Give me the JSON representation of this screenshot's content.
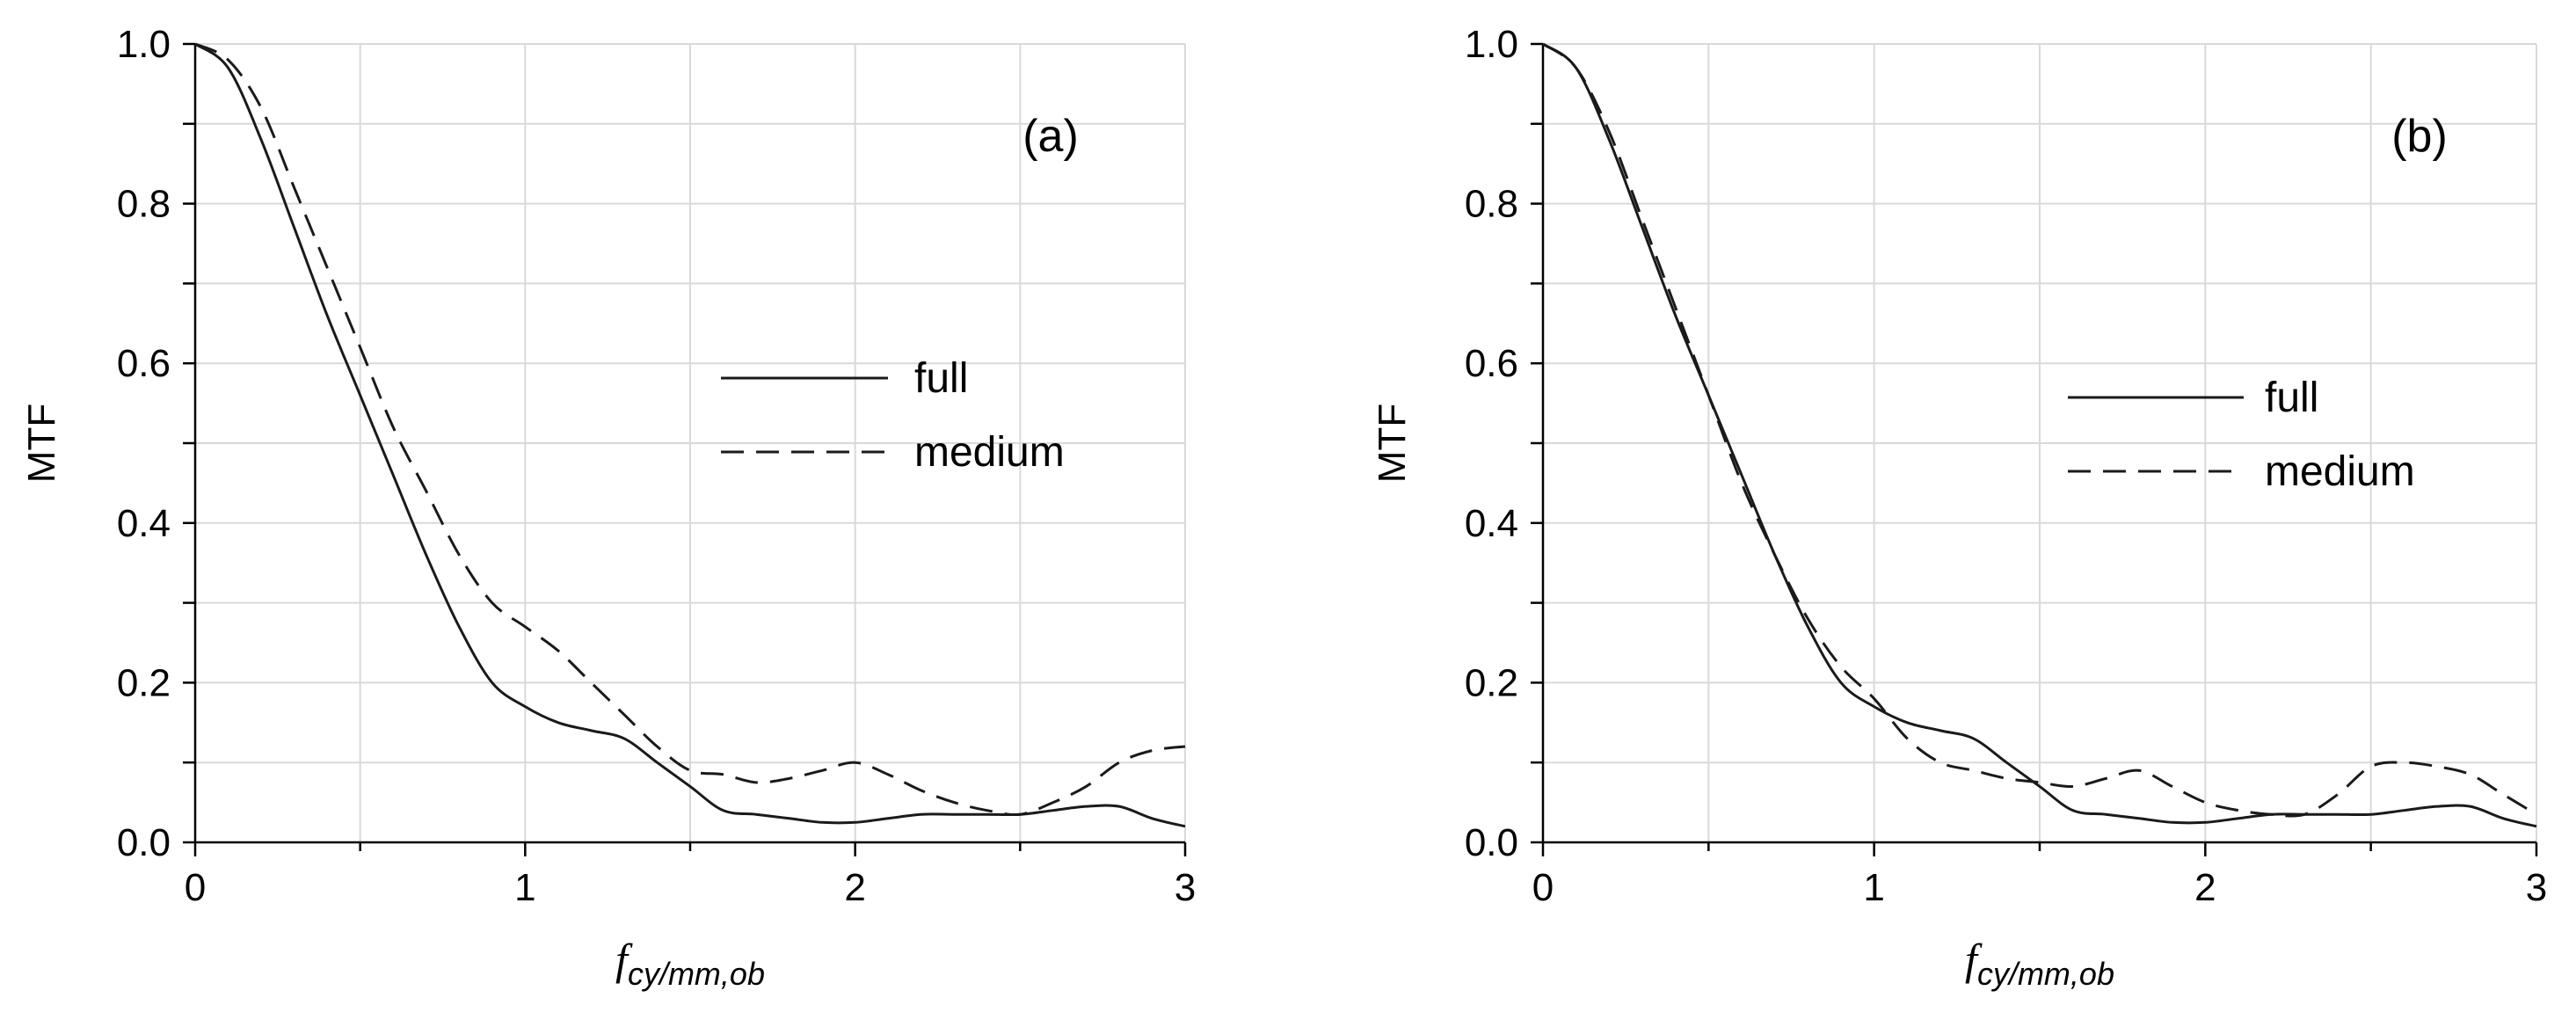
{
  "chart_data": [
    {
      "type": "line",
      "panel_label": "(a)",
      "xlabel": "f",
      "xlabel_subscript": "cy/mm,ob",
      "ylabel": "MTF",
      "xlim": [
        0,
        3
      ],
      "ylim": [
        0,
        1
      ],
      "x_ticks": [
        "0",
        "1",
        "2",
        "3"
      ],
      "y_ticks": [
        "0.0",
        "0.2",
        "0.4",
        "0.6",
        "0.8",
        "1.0"
      ],
      "grid": true,
      "legend_placement": "center-right",
      "series": [
        {
          "name": "full",
          "style": "solid",
          "x": [
            0,
            0.1,
            0.2,
            0.3,
            0.4,
            0.5,
            0.6,
            0.7,
            0.8,
            0.9,
            1.0,
            1.1,
            1.2,
            1.3,
            1.4,
            1.5,
            1.6,
            1.7,
            1.8,
            1.9,
            2.0,
            2.1,
            2.2,
            2.3,
            2.4,
            2.5,
            2.6,
            2.7,
            2.8,
            2.9,
            3.0
          ],
          "y": [
            1.0,
            0.97,
            0.88,
            0.77,
            0.66,
            0.56,
            0.46,
            0.36,
            0.27,
            0.2,
            0.17,
            0.15,
            0.14,
            0.13,
            0.1,
            0.07,
            0.04,
            0.035,
            0.03,
            0.025,
            0.025,
            0.03,
            0.035,
            0.035,
            0.035,
            0.035,
            0.04,
            0.045,
            0.045,
            0.03,
            0.02
          ]
        },
        {
          "name": "medium",
          "style": "dashed",
          "x": [
            0,
            0.1,
            0.2,
            0.3,
            0.4,
            0.5,
            0.6,
            0.7,
            0.8,
            0.9,
            1.0,
            1.1,
            1.2,
            1.3,
            1.4,
            1.5,
            1.6,
            1.7,
            1.8,
            1.9,
            2.0,
            2.1,
            2.2,
            2.3,
            2.4,
            2.5,
            2.6,
            2.7,
            2.8,
            2.9,
            3.0
          ],
          "y": [
            1.0,
            0.98,
            0.92,
            0.82,
            0.72,
            0.62,
            0.52,
            0.44,
            0.36,
            0.3,
            0.27,
            0.24,
            0.2,
            0.16,
            0.12,
            0.09,
            0.085,
            0.075,
            0.08,
            0.09,
            0.1,
            0.085,
            0.065,
            0.05,
            0.04,
            0.035,
            0.05,
            0.07,
            0.1,
            0.115,
            0.12
          ]
        }
      ]
    },
    {
      "type": "line",
      "panel_label": "(b)",
      "xlabel": "f",
      "xlabel_subscript": "cy/mm,ob",
      "ylabel": "MTF",
      "xlim": [
        0,
        3
      ],
      "ylim": [
        0,
        1
      ],
      "x_ticks": [
        "0",
        "1",
        "2",
        "3"
      ],
      "y_ticks": [
        "0.0",
        "0.2",
        "0.4",
        "0.6",
        "0.8",
        "1.0"
      ],
      "grid": true,
      "legend_placement": "center-right",
      "series": [
        {
          "name": "full",
          "style": "solid",
          "x": [
            0,
            0.1,
            0.2,
            0.3,
            0.4,
            0.5,
            0.6,
            0.7,
            0.8,
            0.9,
            1.0,
            1.1,
            1.2,
            1.3,
            1.4,
            1.5,
            1.6,
            1.7,
            1.8,
            1.9,
            2.0,
            2.1,
            2.2,
            2.3,
            2.4,
            2.5,
            2.6,
            2.7,
            2.8,
            2.9,
            3.0
          ],
          "y": [
            1.0,
            0.97,
            0.88,
            0.77,
            0.66,
            0.56,
            0.46,
            0.36,
            0.27,
            0.2,
            0.17,
            0.15,
            0.14,
            0.13,
            0.1,
            0.07,
            0.04,
            0.035,
            0.03,
            0.025,
            0.025,
            0.03,
            0.035,
            0.035,
            0.035,
            0.035,
            0.04,
            0.045,
            0.045,
            0.03,
            0.02
          ]
        },
        {
          "name": "medium",
          "style": "dashed",
          "x": [
            0,
            0.1,
            0.2,
            0.3,
            0.4,
            0.5,
            0.6,
            0.7,
            0.8,
            0.9,
            1.0,
            1.1,
            1.2,
            1.3,
            1.4,
            1.5,
            1.6,
            1.7,
            1.8,
            1.9,
            2.0,
            2.1,
            2.2,
            2.3,
            2.4,
            2.5,
            2.6,
            2.7,
            2.8,
            2.9,
            3.0
          ],
          "y": [
            1.0,
            0.97,
            0.89,
            0.78,
            0.67,
            0.56,
            0.45,
            0.36,
            0.28,
            0.22,
            0.18,
            0.13,
            0.1,
            0.09,
            0.08,
            0.075,
            0.07,
            0.08,
            0.09,
            0.07,
            0.05,
            0.04,
            0.035,
            0.035,
            0.06,
            0.095,
            0.1,
            0.095,
            0.085,
            0.06,
            0.035
          ]
        }
      ]
    }
  ]
}
